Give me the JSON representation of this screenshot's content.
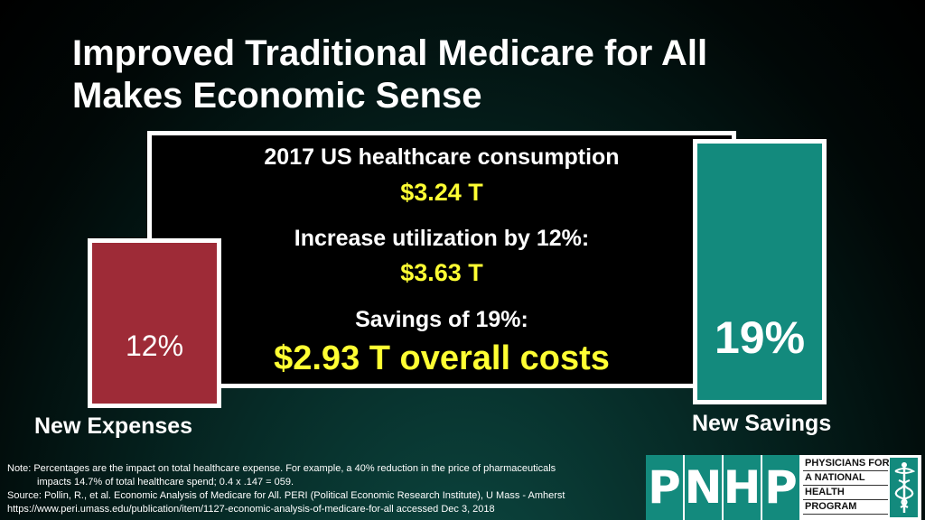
{
  "slide": {
    "title_line1": "Improved Traditional Medicare for All",
    "title_line2": "Makes Economic Sense"
  },
  "center_box": {
    "line1": "2017 US healthcare consumption",
    "line1_value": "$3.24 T",
    "line2": "Increase utilization by 12%:",
    "line2_value": "$3.63 T",
    "line3": "Savings of 19%:",
    "line3_value": "$2.93 T overall costs"
  },
  "left_bar": {
    "percent": "12%",
    "caption": "New Expenses",
    "value": 12,
    "color": "#9e2b37"
  },
  "right_bar": {
    "percent": "19%",
    "caption": "New Savings",
    "value": 19,
    "color": "#138a7d"
  },
  "notes": {
    "line1": "Note: Percentages are the impact on total healthcare expense. For example, a 40% reduction in the price of pharmaceuticals",
    "line2": "impacts 14.7% of total healthcare spend; 0.4 x .147 = 059.",
    "line3": "Source: Pollin, R., et al. Economic Analysis of Medicare for All. PERI (Political Economic Research Institute), U Mass - Amherst",
    "line4": "https://www.peri.umass.edu/publication/item/1127-economic-analysis-of-medicare-for-all accessed Dec 3, 2018"
  },
  "logo": {
    "letters": [
      "P",
      "N",
      "H",
      "P"
    ],
    "org_lines": [
      "PHYSICIANS FOR",
      "A NATIONAL",
      "HEALTH",
      "PROGRAM"
    ],
    "icon": "caduceus-icon"
  },
  "colors": {
    "yellow": "#ffff33",
    "teal": "#138a7d",
    "maroon": "#9e2b37"
  }
}
